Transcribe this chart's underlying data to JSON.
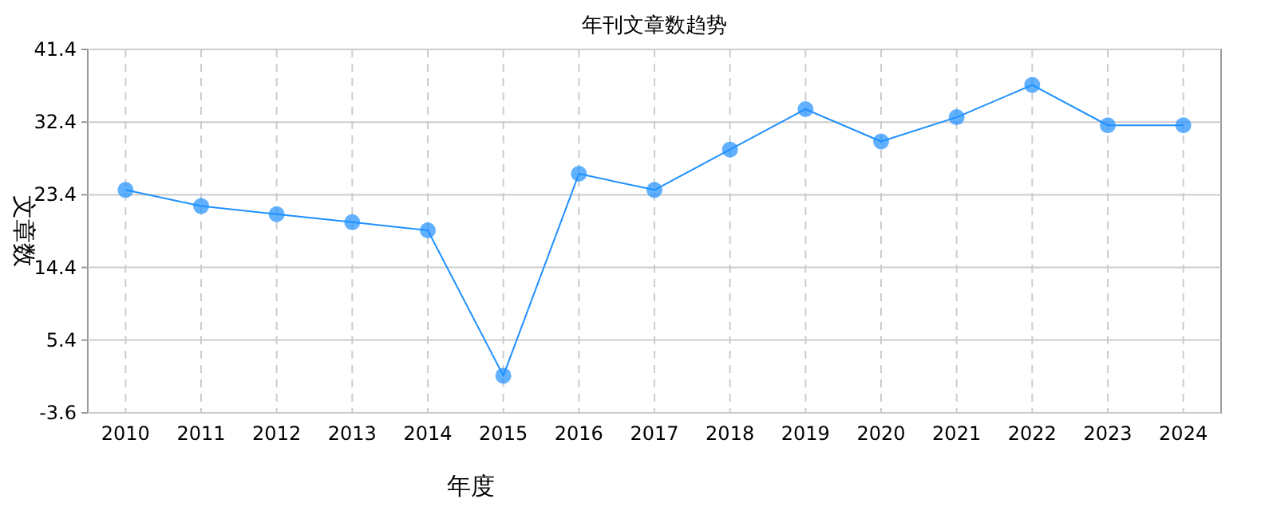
{
  "chart_data": {
    "type": "line",
    "title": "年刊文章数趋势",
    "xlabel": "年度",
    "ylabel": "文章数",
    "categories": [
      "2010",
      "2011",
      "2012",
      "2013",
      "2014",
      "2015",
      "2016",
      "2017",
      "2018",
      "2019",
      "2020",
      "2021",
      "2022",
      "2023",
      "2024"
    ],
    "series": [
      {
        "color": "#1e90ff",
        "values": [
          24,
          22,
          21,
          20,
          19,
          1,
          26,
          24,
          29,
          34,
          30,
          33,
          37,
          32,
          32
        ]
      }
    ],
    "ylim": [
      -3.6,
      41.4
    ],
    "yticks": [
      -3.6,
      5.4,
      14.4,
      23.4,
      32.4,
      41.4
    ],
    "grid": true,
    "marker": "circle",
    "line_style": "solid"
  }
}
